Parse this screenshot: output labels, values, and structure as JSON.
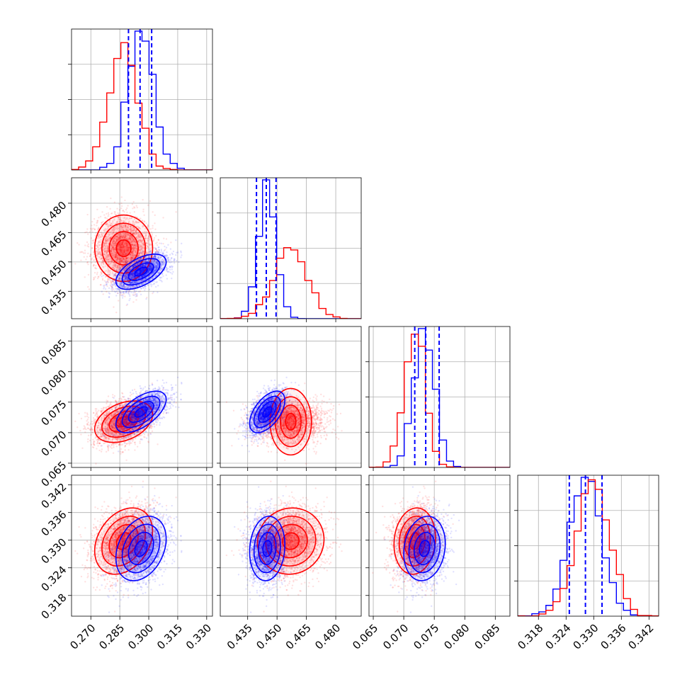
{
  "chart_data": {
    "type": "corner",
    "title": "",
    "grid": true,
    "series": [
      {
        "color": "#ff0000",
        "means": [
          0.287,
          0.457,
          0.0718,
          0.3298
        ],
        "sigmas": [
          0.0075,
          0.0085,
          0.0017,
          0.0036
        ]
      },
      {
        "color": "#0000ff",
        "means": [
          0.296,
          0.445,
          0.0734,
          0.3282
        ],
        "sigmas": [
          0.0065,
          0.0045,
          0.0017,
          0.0035
        ]
      }
    ],
    "correlations": {
      "red": [
        [
          1,
          0,
          0.35,
          0.3
        ],
        [
          0,
          1,
          0,
          0.05
        ],
        [
          0.35,
          0,
          1,
          0.1
        ],
        [
          0.3,
          0.05,
          0.1,
          1
        ]
      ],
      "blue": [
        [
          1,
          0.55,
          0.6,
          0.3
        ],
        [
          0.55,
          1,
          0.55,
          0.1
        ],
        [
          0.6,
          0.55,
          1,
          0.15
        ],
        [
          0.3,
          0.1,
          0.15,
          1
        ]
      ]
    },
    "quantile_lines": [
      [
        0.2895,
        0.2955,
        0.3015
      ],
      [
        0.4395,
        0.4445,
        0.4495
      ],
      [
        0.0718,
        0.0736,
        0.0758
      ],
      [
        0.3247,
        0.3282,
        0.3318
      ]
    ],
    "params": [
      {
        "range": [
          0.26,
          0.333
        ],
        "ticks": [
          "0.270",
          "0.285",
          "0.300",
          "0.315",
          "0.330"
        ]
      },
      {
        "range": [
          0.421,
          0.493
        ],
        "ticks": [
          "0.435",
          "0.450",
          "0.465",
          "0.480"
        ]
      },
      {
        "range": [
          0.0643,
          0.0874
        ],
        "ticks": [
          "0.065",
          "0.070",
          "0.075",
          "0.080",
          "0.085"
        ]
      },
      {
        "range": [
          0.3135,
          0.3441
        ],
        "ticks": [
          "0.318",
          "0.324",
          "0.330",
          "0.336",
          "0.342"
        ]
      }
    ]
  }
}
